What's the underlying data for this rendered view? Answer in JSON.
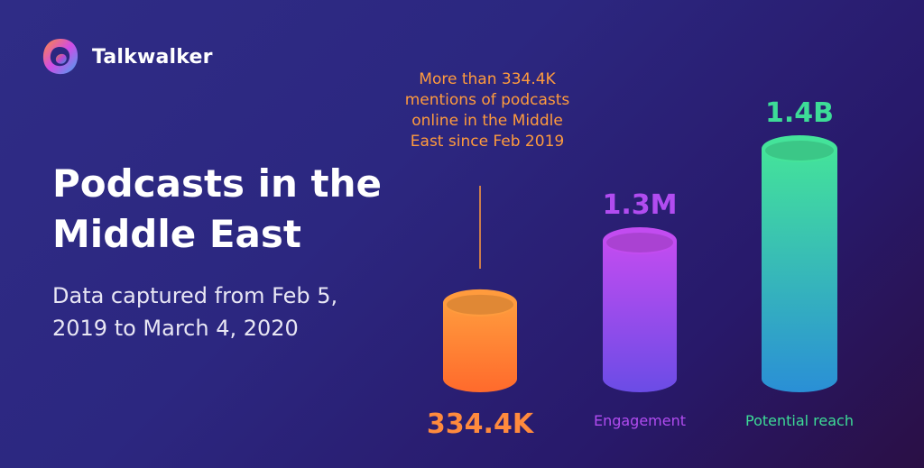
{
  "brand": {
    "name": "Talkwalker"
  },
  "title": "Podcasts in the Middle East",
  "subtitle": "Data captured from Feb 5, 2019 to March 4, 2020",
  "annotation": "More than 334.4K mentions of podcasts online in the Middle East since Feb 2019",
  "colors": {
    "orange": "#ff8a3d",
    "purple": "#b14cf0",
    "green": "#3ddc97",
    "blue": "#2a8fd6",
    "background": "#2c2780"
  },
  "chart_data": {
    "type": "bar",
    "categories": [
      "334.4K",
      "Engagement",
      "Potential reach"
    ],
    "values": [
      334400,
      1300000,
      1400000000
    ],
    "value_labels": [
      "",
      "1.3M",
      "1.4B"
    ],
    "category_labels": [
      "334.4K",
      "Engagement",
      "Potential reach"
    ],
    "title": "Podcasts in the Middle East",
    "xlabel": "",
    "ylabel": "",
    "scale": "non-linear (illustrative cylinders)",
    "relative_heights": [
      0.33,
      0.6,
      1.0
    ],
    "bar_colors": [
      [
        "#ff9b3d",
        "#ff6a2c"
      ],
      [
        "#c24cf0",
        "#6b4ce6"
      ],
      [
        "#44e39a",
        "#2a8fd6"
      ]
    ],
    "grid": false,
    "legend": "none"
  }
}
